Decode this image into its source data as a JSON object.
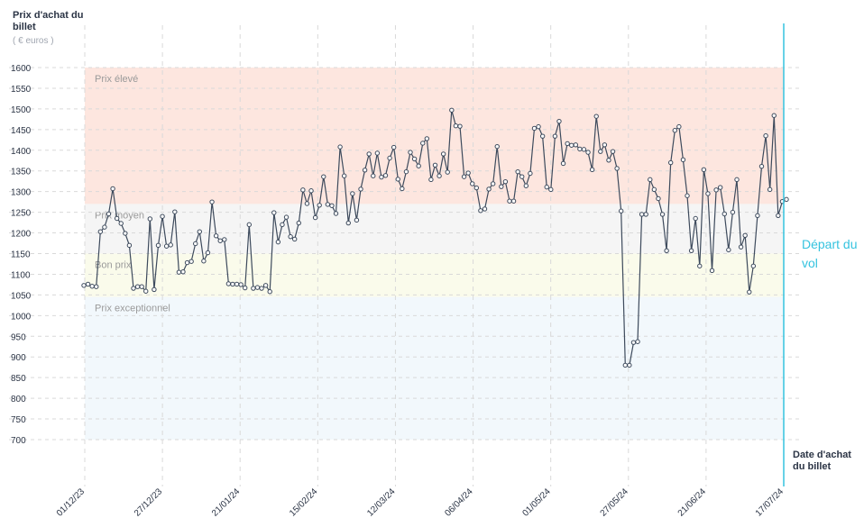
{
  "header": {
    "y_title": "Prix d'achat du billet",
    "y_unit": "( € euros )",
    "x_title": "Date d'achat du billet",
    "departure_label": "Départ du vol"
  },
  "colors": {
    "line": "#3d4a5c",
    "zone_high": "#fde6df",
    "zone_medium": "#f5f5f5",
    "zone_good": "#fafbeb",
    "zone_exceptional": "#f2f8fc",
    "departure_line": "#35c3df",
    "grid": "#d9d9d9"
  },
  "chart_data": {
    "type": "line",
    "title": "",
    "xlabel": "Date d'achat du billet",
    "ylabel": "Prix d'achat du billet",
    "y_unit": "( € euros )",
    "ylim": [
      700,
      1600
    ],
    "yticks": [
      1600,
      1550,
      1500,
      1450,
      1400,
      1350,
      1300,
      1250,
      1200,
      1150,
      1100,
      1050,
      1000,
      950,
      900,
      850,
      800,
      750,
      700
    ],
    "xlim": [
      "2023-12-01",
      "2024-07-17"
    ],
    "xticks": [
      "01/12/23",
      "27/12/23",
      "21/01/24",
      "15/02/24",
      "12/03/24",
      "06/04/24",
      "01/05/24",
      "27/05/24",
      "21/06/24",
      "17/07/24"
    ],
    "grid": true,
    "zones": [
      {
        "label": "Prix élevé",
        "from": 1270,
        "to": 1600
      },
      {
        "label": "Prix moyen",
        "from": 1150,
        "to": 1270
      },
      {
        "label": "Bon prix",
        "from": 1045,
        "to": 1150
      },
      {
        "label": "Prix exceptionnel",
        "from": 700,
        "to": 1045
      }
    ],
    "departure_date": "2024-07-17",
    "series": [
      {
        "values": [
          1073,
          1076,
          1071,
          1070,
          1203,
          1214,
          1246,
          1307,
          1235,
          1223,
          1199,
          1170,
          1066,
          1070,
          1070,
          1059,
          1234,
          1063,
          1170,
          1240,
          1168,
          1171,
          1251,
          1105,
          1106,
          1128,
          1131,
          1174,
          1203,
          1132,
          1152,
          1275,
          1193,
          1181,
          1184,
          1077,
          1076,
          1076,
          1075,
          1067,
          1220,
          1066,
          1068,
          1066,
          1073,
          1058,
          1249,
          1178,
          1220,
          1238,
          1191,
          1185,
          1224,
          1304,
          1271,
          1302,
          1237,
          1267,
          1336,
          1269,
          1266,
          1247,
          1408,
          1338,
          1224,
          1295,
          1231,
          1306,
          1352,
          1391,
          1338,
          1393,
          1335,
          1339,
          1381,
          1407,
          1330,
          1307,
          1348,
          1395,
          1379,
          1362,
          1417,
          1428,
          1329,
          1364,
          1338,
          1391,
          1347,
          1497,
          1459,
          1458,
          1336,
          1345,
          1319,
          1309,
          1254,
          1258,
          1306,
          1319,
          1409,
          1312,
          1324,
          1277,
          1277,
          1348,
          1336,
          1314,
          1344,
          1453,
          1457,
          1434,
          1311,
          1305,
          1434,
          1470,
          1368,
          1416,
          1412,
          1413,
          1403,
          1402,
          1395,
          1353,
          1482,
          1397,
          1413,
          1376,
          1397,
          1356,
          1253,
          880,
          880,
          935,
          937,
          1245,
          1245,
          1329,
          1305,
          1283,
          1245,
          1157,
          1370,
          1448,
          1457,
          1377,
          1290,
          1157,
          1235,
          1120,
          1353,
          1295,
          1109,
          1304,
          1310,
          1246,
          1159,
          1250,
          1329,
          1166,
          1194,
          1057,
          1120,
          1242,
          1361,
          1435,
          1305,
          1484,
          1242,
          1276,
          1281
        ]
      }
    ]
  }
}
